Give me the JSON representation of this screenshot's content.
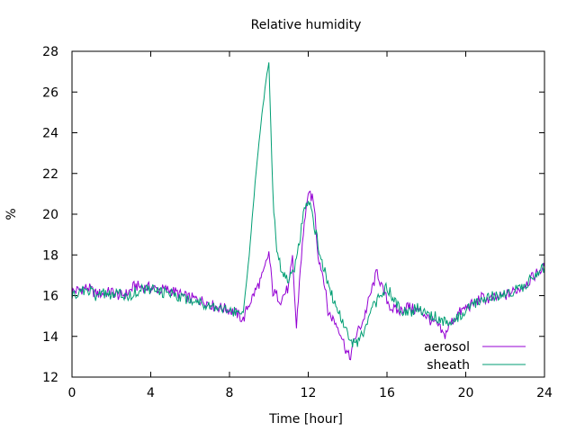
{
  "chart_data": {
    "type": "line",
    "title": "Relative humidity",
    "xlabel": "Time [hour]",
    "ylabel": "%",
    "xlim": [
      0,
      24
    ],
    "ylim": [
      12,
      28
    ],
    "xticks": [
      0,
      4,
      8,
      12,
      16,
      20,
      24
    ],
    "yticks": [
      12,
      14,
      16,
      18,
      20,
      22,
      24,
      26,
      28
    ],
    "xtick_labels": [
      "0",
      "4",
      "8",
      "12",
      "16",
      "20",
      "24"
    ],
    "ytick_labels": [
      "12",
      "14",
      "16",
      "18",
      "20",
      "22",
      "24",
      "26",
      "28"
    ],
    "grid": false,
    "legend_position": "bottom-right",
    "series": [
      {
        "name": "aerosol",
        "color": "#9400d3",
        "points": [
          [
            0.0,
            16.2
          ],
          [
            0.4,
            16.3
          ],
          [
            0.8,
            16.4
          ],
          [
            1.2,
            16.1
          ],
          [
            1.6,
            16.1
          ],
          [
            2.0,
            16.2
          ],
          [
            2.4,
            16.0
          ],
          [
            2.8,
            16.1
          ],
          [
            3.2,
            16.5
          ],
          [
            3.6,
            16.4
          ],
          [
            4.0,
            16.4
          ],
          [
            4.4,
            16.3
          ],
          [
            4.8,
            16.3
          ],
          [
            5.2,
            16.2
          ],
          [
            5.6,
            16.0
          ],
          [
            6.0,
            15.9
          ],
          [
            6.4,
            15.8
          ],
          [
            6.8,
            15.7
          ],
          [
            7.2,
            15.5
          ],
          [
            7.6,
            15.4
          ],
          [
            8.0,
            15.3
          ],
          [
            8.4,
            15.1
          ],
          [
            8.7,
            14.8
          ],
          [
            8.9,
            15.4
          ],
          [
            9.3,
            16.2
          ],
          [
            9.7,
            17.0
          ],
          [
            10.0,
            18.1
          ],
          [
            10.2,
            16.2
          ],
          [
            10.6,
            15.8
          ],
          [
            11.0,
            16.4
          ],
          [
            11.2,
            17.8
          ],
          [
            11.4,
            14.4
          ],
          [
            11.6,
            17.4
          ],
          [
            11.9,
            20.5
          ],
          [
            12.1,
            21.0
          ],
          [
            12.3,
            20.5
          ],
          [
            12.5,
            18.0
          ],
          [
            12.8,
            16.8
          ],
          [
            13.0,
            15.2
          ],
          [
            13.3,
            14.8
          ],
          [
            13.6,
            14.3
          ],
          [
            13.9,
            13.4
          ],
          [
            14.1,
            12.9
          ],
          [
            14.4,
            14.0
          ],
          [
            14.8,
            14.8
          ],
          [
            15.2,
            16.2
          ],
          [
            15.5,
            17.2
          ],
          [
            15.8,
            16.2
          ],
          [
            16.2,
            15.4
          ],
          [
            16.6,
            15.2
          ],
          [
            17.0,
            15.5
          ],
          [
            17.4,
            15.3
          ],
          [
            17.8,
            15.2
          ],
          [
            18.2,
            14.8
          ],
          [
            18.6,
            14.5
          ],
          [
            18.9,
            14.0
          ],
          [
            19.2,
            14.6
          ],
          [
            19.6,
            15.1
          ],
          [
            20.0,
            15.4
          ],
          [
            20.4,
            15.6
          ],
          [
            20.8,
            15.9
          ],
          [
            21.2,
            15.8
          ],
          [
            21.6,
            15.9
          ],
          [
            22.0,
            16.0
          ],
          [
            22.4,
            16.2
          ],
          [
            22.8,
            16.4
          ],
          [
            23.2,
            16.7
          ],
          [
            23.6,
            17.1
          ],
          [
            24.0,
            17.4
          ]
        ]
      },
      {
        "name": "sheath",
        "color": "#009e73",
        "points": [
          [
            0.0,
            16.0
          ],
          [
            0.4,
            16.2
          ],
          [
            0.8,
            16.3
          ],
          [
            1.2,
            16.0
          ],
          [
            1.6,
            16.1
          ],
          [
            2.0,
            16.0
          ],
          [
            2.4,
            16.1
          ],
          [
            2.8,
            15.9
          ],
          [
            3.2,
            16.2
          ],
          [
            3.6,
            16.3
          ],
          [
            4.0,
            16.3
          ],
          [
            4.4,
            16.2
          ],
          [
            4.8,
            16.1
          ],
          [
            5.2,
            16.1
          ],
          [
            5.6,
            15.9
          ],
          [
            6.0,
            15.8
          ],
          [
            6.4,
            15.7
          ],
          [
            6.8,
            15.6
          ],
          [
            7.2,
            15.5
          ],
          [
            7.6,
            15.4
          ],
          [
            8.0,
            15.3
          ],
          [
            8.4,
            15.1
          ],
          [
            8.7,
            15.2
          ],
          [
            9.0,
            18.0
          ],
          [
            9.3,
            21.5
          ],
          [
            9.6,
            24.5
          ],
          [
            9.85,
            26.5
          ],
          [
            10.0,
            27.5
          ],
          [
            10.2,
            21.0
          ],
          [
            10.4,
            18.0
          ],
          [
            10.7,
            17.2
          ],
          [
            11.0,
            16.8
          ],
          [
            11.3,
            17.4
          ],
          [
            11.6,
            19.0
          ],
          [
            11.8,
            20.5
          ],
          [
            12.1,
            20.6
          ],
          [
            12.3,
            19.5
          ],
          [
            12.6,
            18.0
          ],
          [
            12.9,
            17.0
          ],
          [
            13.2,
            16.0
          ],
          [
            13.5,
            15.3
          ],
          [
            13.8,
            14.6
          ],
          [
            14.1,
            13.8
          ],
          [
            14.4,
            13.6
          ],
          [
            14.8,
            14.1
          ],
          [
            15.2,
            15.2
          ],
          [
            15.6,
            16.0
          ],
          [
            16.0,
            16.4
          ],
          [
            16.4,
            15.7
          ],
          [
            16.8,
            15.3
          ],
          [
            17.2,
            15.2
          ],
          [
            17.6,
            15.4
          ],
          [
            18.0,
            15.1
          ],
          [
            18.4,
            15.0
          ],
          [
            18.8,
            14.8
          ],
          [
            19.1,
            14.5
          ],
          [
            19.5,
            14.8
          ],
          [
            19.9,
            15.2
          ],
          [
            20.3,
            15.5
          ],
          [
            20.7,
            15.8
          ],
          [
            21.1,
            15.9
          ],
          [
            21.5,
            16.0
          ],
          [
            21.9,
            16.1
          ],
          [
            22.3,
            16.2
          ],
          [
            22.7,
            16.3
          ],
          [
            23.1,
            16.6
          ],
          [
            23.5,
            17.1
          ],
          [
            24.0,
            17.4
          ]
        ]
      }
    ]
  }
}
